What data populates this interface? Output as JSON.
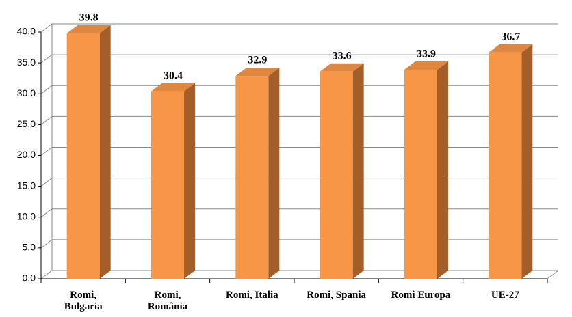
{
  "chart_data": {
    "type": "bar3d",
    "categories": [
      "Romi,\nBulgaria",
      "Romi,\nRomânia",
      "Romi, Italia",
      "Romi, Spania",
      "Romi Europa",
      "UE-27"
    ],
    "values": [
      39.8,
      30.4,
      32.9,
      33.6,
      33.9,
      36.7
    ],
    "color": "#f79646",
    "ylim": [
      0,
      40
    ],
    "yticks": [
      {
        "value": 0,
        "label": "0.0"
      },
      {
        "value": 5,
        "label": "5.0"
      },
      {
        "value": 10,
        "label": "10.0"
      },
      {
        "value": 15,
        "label": "15.0"
      },
      {
        "value": 20,
        "label": "20.0"
      },
      {
        "value": 25,
        "label": "25.0"
      },
      {
        "value": 30,
        "label": "30.0"
      },
      {
        "value": 35,
        "label": "35.0"
      },
      {
        "value": 40,
        "label": "40.0"
      }
    ],
    "grid": true
  }
}
